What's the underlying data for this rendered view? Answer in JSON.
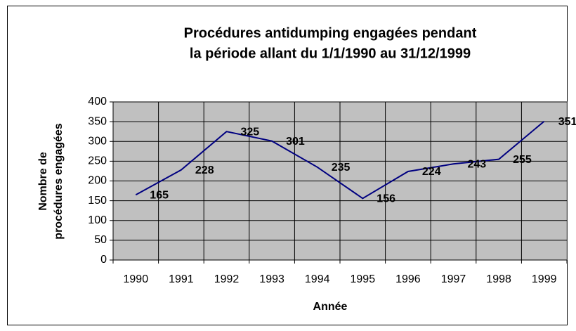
{
  "chart_data": {
    "type": "line",
    "title": [
      "Procédures antidumping engagées pendant",
      "la période allant du 1/1/1990 au 31/12/1999"
    ],
    "x_label": "Année",
    "y_label": [
      "Nombre de",
      "procédures engagées"
    ],
    "categories": [
      "1990",
      "1991",
      "1992",
      "1993",
      "1994",
      "1995",
      "1996",
      "1997",
      "1998",
      "1999"
    ],
    "series": [
      {
        "name": "Procédures",
        "color": "#000080",
        "values": [
          165,
          228,
          325,
          301,
          235,
          156,
          224,
          243,
          255,
          351
        ]
      }
    ],
    "ylim": [
      0,
      400
    ],
    "yticks": [
      0,
      50,
      100,
      150,
      200,
      250,
      300,
      350,
      400
    ],
    "grid": true,
    "plot_background": "#c0c0c0"
  }
}
